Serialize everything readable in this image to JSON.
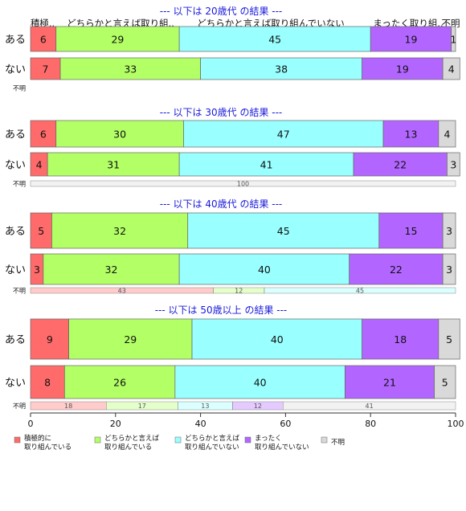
{
  "chart_data": {
    "type": "bar",
    "orientation": "horizontal",
    "stacked": true,
    "xlim": [
      0,
      100
    ],
    "x_ticks": [
      0,
      20,
      40,
      60,
      80,
      100
    ],
    "header_labels": [
      "積極..",
      "どちらかと言えば取り組..",
      "どちらかと言えば取り組んでいない",
      "まったく取り組..",
      "不明"
    ],
    "colors": [
      "#ff6b6b",
      "#b3ff66",
      "#99ffff",
      "#b266ff",
      "#d9d9d9"
    ],
    "legend": [
      {
        "label": "積極的に\n取り組んでいる",
        "color": "#ff6b6b"
      },
      {
        "label": "どちらかと言えば\n取り組んでいる",
        "color": "#b3ff66"
      },
      {
        "label": "どちらかと言えば\n取り組んでいない",
        "color": "#99ffff"
      },
      {
        "label": "まったく\n取り組んでいない",
        "color": "#b266ff"
      },
      {
        "label": "不明",
        "color": "#d9d9d9"
      }
    ],
    "groups": [
      {
        "title": "--- 以下は 20歳代 の結果 ---",
        "rows": [
          {
            "label": "ある",
            "values": [
              6,
              29,
              45,
              19,
              1
            ]
          },
          {
            "label": "ない",
            "values": [
              7,
              33,
              38,
              19,
              4
            ]
          }
        ],
        "unknown": {
          "label": "不明",
          "values": [
            0,
            0,
            0,
            0,
            0
          ],
          "labels": []
        }
      },
      {
        "title": "--- 以下は 30歳代 の結果 ---",
        "rows": [
          {
            "label": "ある",
            "values": [
              6,
              30,
              47,
              13,
              4
            ]
          },
          {
            "label": "ない",
            "values": [
              4,
              31,
              41,
              22,
              3
            ]
          }
        ],
        "unknown": {
          "label": "不明",
          "values": [
            0,
            0,
            0,
            0,
            100
          ],
          "labels": [
            "",
            "",
            "",
            "",
            "100"
          ]
        }
      },
      {
        "title": "--- 以下は 40歳代 の結果 ---",
        "rows": [
          {
            "label": "ある",
            "values": [
              5,
              32,
              45,
              15,
              3
            ]
          },
          {
            "label": "ない",
            "values": [
              3,
              32,
              40,
              22,
              3
            ]
          }
        ],
        "unknown": {
          "label": "不明",
          "values": [
            43,
            12,
            45,
            0,
            0
          ],
          "labels": [
            "43",
            "12",
            "45",
            "",
            ""
          ]
        }
      },
      {
        "title": "--- 以下は 50歳以上 の結果 ---",
        "rows": [
          {
            "label": "ある",
            "values": [
              9,
              29,
              40,
              18,
              5
            ]
          },
          {
            "label": "ない",
            "values": [
              8,
              26,
              40,
              21,
              5
            ]
          }
        ],
        "unknown": {
          "label": "不明",
          "values": [
            18,
            17,
            13,
            12,
            41
          ],
          "labels": [
            "18",
            "17",
            "13",
            "12",
            "41"
          ]
        }
      }
    ]
  }
}
